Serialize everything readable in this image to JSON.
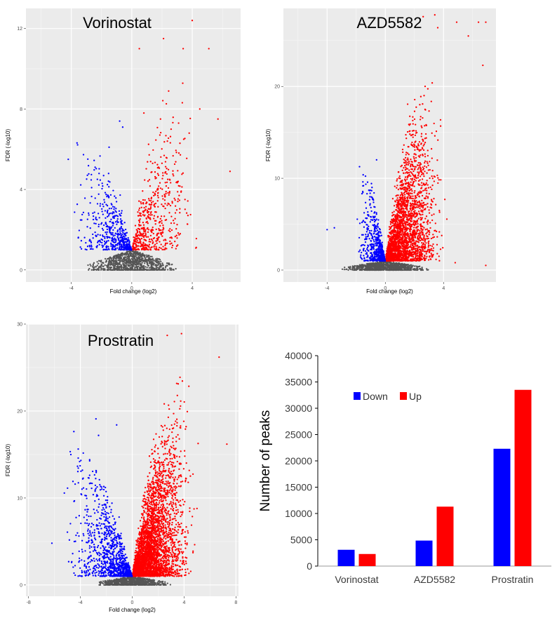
{
  "chart_data": [
    {
      "type": "scatter",
      "title": "Vorinostat",
      "xlabel": "Fold change (log2)",
      "ylabel": "FDR (-log10)",
      "xlim": [
        -7,
        7.2
      ],
      "ylim": [
        -0.6,
        13
      ],
      "xticks": [
        -4,
        0,
        4
      ],
      "yticks": [
        0,
        4,
        8,
        12
      ],
      "colors": {
        "down": "#0000ff",
        "up": "#ff0000",
        "ns": "#555555"
      },
      "spread": {
        "maxFC": 3.4,
        "maxY": 5.6,
        "rate": 0.85,
        "asym": 0.9,
        "nDown": 520,
        "nUp": 540,
        "nNs": 900,
        "downSkew": 1.0
      },
      "outliers": [
        [
          4.0,
          12.4
        ],
        [
          5.1,
          11.0
        ],
        [
          3.4,
          11.0
        ],
        [
          0.5,
          11.0
        ],
        [
          2.1,
          11.5
        ],
        [
          4.5,
          8.0
        ],
        [
          5.7,
          7.5
        ],
        [
          1.9,
          7.5
        ],
        [
          3.1,
          7.3
        ],
        [
          6.5,
          4.9
        ],
        [
          0.8,
          7.8
        ],
        [
          -0.8,
          7.4
        ],
        [
          -4.2,
          5.5
        ],
        [
          -1.5,
          6.1
        ],
        [
          3.8,
          6.8
        ],
        [
          2.6,
          7.0
        ],
        [
          -0.6,
          7.1
        ],
        [
          2.0,
          5.3
        ]
      ]
    },
    {
      "type": "scatter",
      "title": "AZD5582",
      "xlabel": "Fold change (log2)",
      "ylabel": "FDR (-log10)",
      "xlim": [
        -7,
        7.6
      ],
      "ylim": [
        -1.3,
        28.5
      ],
      "xticks": [
        -4,
        0,
        4
      ],
      "yticks": [
        0,
        10,
        20
      ],
      "colors": {
        "down": "#0000ff",
        "up": "#ff0000",
        "ns": "#555555"
      },
      "spread": {
        "maxFC": 3.0,
        "maxY": 12.0,
        "rate": 2.0,
        "asym": 2.3,
        "nDown": 600,
        "nUp": 2600,
        "nNs": 900,
        "downSkew": 0.55
      },
      "outliers": [
        [
          3.4,
          27.8
        ],
        [
          6.4,
          27.0
        ],
        [
          6.9,
          27.0
        ],
        [
          4.9,
          27.0
        ],
        [
          3.6,
          26.4
        ],
        [
          2.6,
          27.6
        ],
        [
          5.7,
          25.5
        ],
        [
          6.7,
          22.3
        ],
        [
          1.5,
          12.0
        ],
        [
          -0.6,
          12.0
        ],
        [
          -4.0,
          4.4
        ],
        [
          -3.5,
          4.6
        ],
        [
          4.8,
          0.8
        ],
        [
          6.9,
          0.5
        ]
      ]
    },
    {
      "type": "scatter",
      "title": "Prostratin",
      "xlabel": "Fold change (log2)",
      "ylabel": "FDR (-log10)",
      "xlim": [
        -8.2,
        8.2
      ],
      "ylim": [
        -1.3,
        30
      ],
      "xticks": [
        -8,
        -4,
        0,
        4,
        8
      ],
      "yticks": [
        0,
        10,
        20,
        30
      ],
      "colors": {
        "down": "#0000ff",
        "up": "#ff0000",
        "ns": "#555555"
      },
      "spread": {
        "maxFC": 3.6,
        "maxY": 12.5,
        "rate": 2.0,
        "asym": 2.3,
        "nDown": 1100,
        "nUp": 3300,
        "nNs": 800,
        "downSkew": 1.25
      },
      "outliers": [
        [
          -6.2,
          4.8
        ],
        [
          -2.8,
          19.1
        ],
        [
          -2.6,
          17.2
        ],
        [
          3.8,
          28.9
        ],
        [
          2.7,
          28.7
        ],
        [
          6.7,
          26.2
        ],
        [
          7.3,
          16.2
        ],
        [
          -1.2,
          18.4
        ]
      ]
    },
    {
      "type": "bar",
      "categories": [
        "Vorinostat",
        "AZD5582",
        "Prostratin"
      ],
      "series": [
        {
          "name": "Down",
          "color": "#0000ff",
          "values": [
            3100,
            4850,
            22300
          ]
        },
        {
          "name": "Up",
          "color": "#ff0000",
          "values": [
            2300,
            11300,
            33500
          ]
        }
      ],
      "ylabel": "Number of peaks",
      "ylim": [
        0,
        40000
      ],
      "yticks": [
        0,
        5000,
        10000,
        15000,
        20000,
        25000,
        30000,
        35000,
        40000
      ],
      "legend": "upper-left"
    }
  ]
}
